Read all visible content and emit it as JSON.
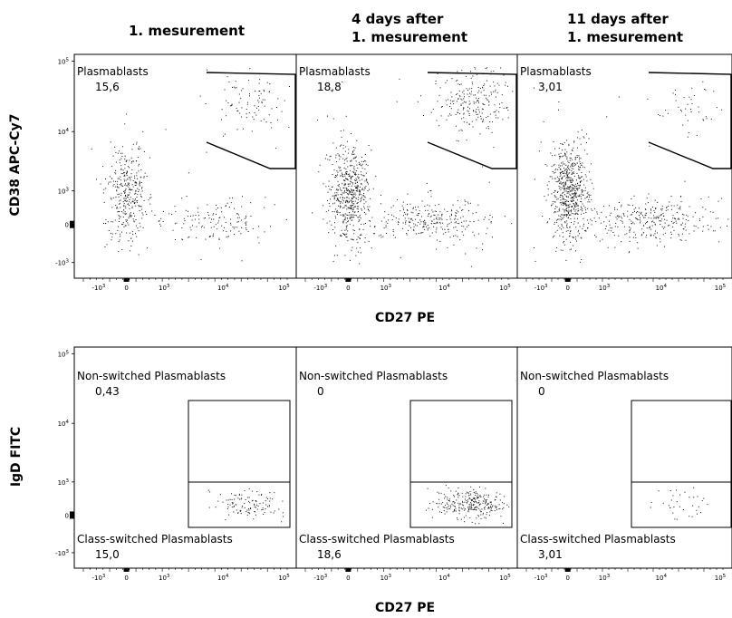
{
  "columns": [
    {
      "title": "1. mesurement"
    },
    {
      "title": "4 days after\n1. mesurement"
    },
    {
      "title": "11 days after\n1. mesurement"
    }
  ],
  "row1": {
    "ylabel": "CD38 APC-Cy7",
    "xlabel": "CD27 PE",
    "y_ticks": [
      "10^5",
      "10^4",
      "10^3",
      "0",
      "-10^3"
    ],
    "x_ticks": [
      "-10^3",
      "0",
      "10^3",
      "10^4",
      "10^5"
    ],
    "gates": [
      {
        "name": "Plasmablasts",
        "value": "15,6"
      },
      {
        "name": "Plasmablasts",
        "value": "18,8"
      },
      {
        "name": "Plasmablasts",
        "value": "3,01"
      }
    ]
  },
  "row2": {
    "ylabel": "IgD FITC",
    "xlabel": "CD27 PE",
    "y_ticks": [
      "10^5",
      "10^4",
      "10^3",
      "0",
      "-10^3"
    ],
    "x_ticks": [
      "-10^3",
      "0",
      "10^3",
      "10^4",
      "10^5"
    ],
    "upper_gates": [
      {
        "name": "Non-switched Plasmablasts",
        "value": "0,43"
      },
      {
        "name": "Non-switched Plasmablasts",
        "value": "0"
      },
      {
        "name": "Non-switched Plasmablasts",
        "value": "0"
      }
    ],
    "lower_gates": [
      {
        "name": "Class-switched Plasmablasts",
        "value": "15,0"
      },
      {
        "name": "Class-switched Plasmablasts",
        "value": "18,6"
      },
      {
        "name": "Class-switched Plasmablasts",
        "value": "3,01"
      }
    ]
  },
  "chart_data": {
    "type": "scatter",
    "plots": [
      {
        "row": 1,
        "column": "1. mesurement",
        "x_axis": "CD27 PE",
        "y_axis": "CD38 APC-Cy7",
        "gate": "Plasmablasts",
        "percent": 15.6
      },
      {
        "row": 1,
        "column": "4 days after 1. mesurement",
        "x_axis": "CD27 PE",
        "y_axis": "CD38 APC-Cy7",
        "gate": "Plasmablasts",
        "percent": 18.8
      },
      {
        "row": 1,
        "column": "11 days after 1. mesurement",
        "x_axis": "CD27 PE",
        "y_axis": "CD38 APC-Cy7",
        "gate": "Plasmablasts",
        "percent": 3.01
      },
      {
        "row": 2,
        "column": "1. mesurement",
        "x_axis": "CD27 PE",
        "y_axis": "IgD FITC",
        "gates": [
          {
            "name": "Non-switched Plasmablasts",
            "percent": 0.43
          },
          {
            "name": "Class-switched Plasmablasts",
            "percent": 15.0
          }
        ]
      },
      {
        "row": 2,
        "column": "4 days after 1. mesurement",
        "x_axis": "CD27 PE",
        "y_axis": "IgD FITC",
        "gates": [
          {
            "name": "Non-switched Plasmablasts",
            "percent": 0
          },
          {
            "name": "Class-switched Plasmablasts",
            "percent": 18.6
          }
        ]
      },
      {
        "row": 2,
        "column": "11 days after 1. mesurement",
        "x_axis": "CD27 PE",
        "y_axis": "IgD FITC",
        "gates": [
          {
            "name": "Non-switched Plasmablasts",
            "percent": 0
          },
          {
            "name": "Class-switched Plasmablasts",
            "percent": 3.01
          }
        ]
      }
    ],
    "x_ticks": [
      "-10^3",
      "0",
      "10^3",
      "10^4",
      "10^5"
    ],
    "y_ticks": [
      "10^5",
      "10^4",
      "10^3",
      "0",
      "-10^3"
    ],
    "grid": false
  }
}
